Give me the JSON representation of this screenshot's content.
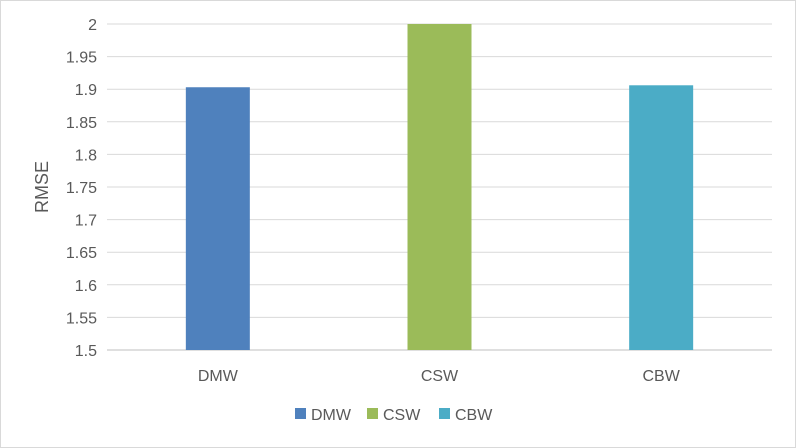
{
  "chart_data": {
    "type": "bar",
    "categories": [
      "DMW",
      "CSW",
      "CBW"
    ],
    "values": [
      1.903,
      2.0,
      1.906
    ],
    "colors": [
      "#4f81bd",
      "#9bbb59",
      "#4bacc6"
    ],
    "title": "",
    "xlabel": "",
    "ylabel": "RMSE",
    "ylim": [
      1.5,
      2
    ],
    "yticks": [
      1.5,
      1.55,
      1.6,
      1.65,
      1.7,
      1.75,
      1.8,
      1.85,
      1.9,
      1.95,
      2
    ],
    "ytick_labels": [
      "1.5",
      "1.55",
      "1.6",
      "1.65",
      "1.7",
      "1.75",
      "1.8",
      "1.85",
      "1.9",
      "1.95",
      "2"
    ],
    "grid": true,
    "legend": {
      "position": "bottom",
      "entries": [
        "DMW",
        "CSW",
        "CBW"
      ]
    }
  }
}
